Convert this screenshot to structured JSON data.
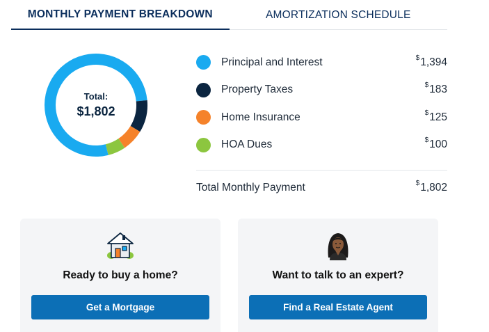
{
  "tabs": [
    {
      "label": "MONTHLY PAYMENT BREAKDOWN",
      "active": true
    },
    {
      "label": "AMORTIZATION SCHEDULE",
      "active": false
    }
  ],
  "donut": {
    "label": "Total:",
    "total": "$1,802"
  },
  "chart_data": {
    "type": "pie",
    "categories": [
      "Principal and Interest",
      "Property Taxes",
      "Home Insurance",
      "HOA Dues"
    ],
    "values": [
      1394,
      183,
      125,
      100
    ],
    "colors": [
      "#19aaf0",
      "#0b2540",
      "#f5822a",
      "#8cc63f"
    ],
    "total": 1802
  },
  "breakdown": {
    "items": [
      {
        "label": "Principal and Interest",
        "currency": "$",
        "amount": "1,394",
        "color": "#19aaf0"
      },
      {
        "label": "Property Taxes",
        "currency": "$",
        "amount": "183",
        "color": "#0b2540"
      },
      {
        "label": "Home Insurance",
        "currency": "$",
        "amount": "125",
        "color": "#f5822a"
      },
      {
        "label": "HOA Dues",
        "currency": "$",
        "amount": "100",
        "color": "#8cc63f"
      }
    ],
    "total_label": "Total Monthly Payment",
    "total_currency": "$",
    "total_amount": "1,802"
  },
  "cards": {
    "buy": {
      "icon": "house-icon",
      "title": "Ready to buy a home?",
      "button": "Get a Mortgage"
    },
    "expert": {
      "icon": "agent-avatar-icon",
      "title": "Want to talk to an expert?",
      "button": "Find a Real Estate Agent"
    }
  }
}
